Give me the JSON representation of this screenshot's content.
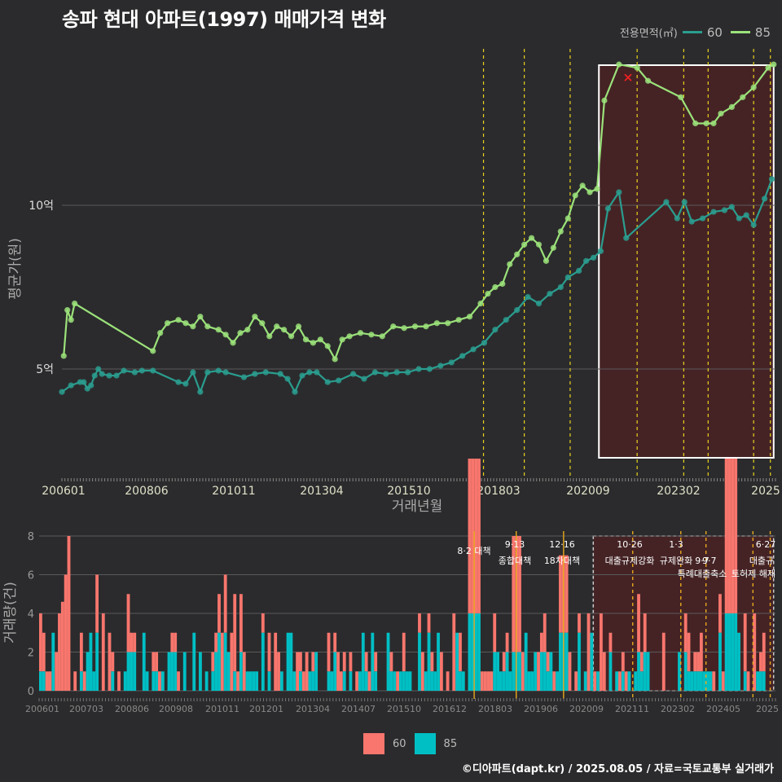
{
  "title": "송파 현대 아파트(1997) 매매가격 변화",
  "legend_top": {
    "title": "전용면적(㎡)",
    "items": [
      {
        "label": "60",
        "color": "#2a9d8f"
      },
      {
        "label": "85",
        "color": "#9be27a"
      }
    ]
  },
  "legend_bottom": {
    "items": [
      {
        "label": "60",
        "color": "#f8766d"
      },
      {
        "label": "85",
        "color": "#00bfc4"
      }
    ]
  },
  "credit": "©디아파트(dapt.kr) / 2025.08.05 / 자료=국토교통부 실거래가",
  "chart_data": [
    {
      "type": "line",
      "xlabel": "거래년월",
      "ylabel": "평균가(원)",
      "x_ticks": [
        "200601",
        "200806",
        "201011",
        "201304",
        "201510",
        "201803",
        "202009",
        "202302",
        "2025"
      ],
      "y_ticks": [
        {
          "label": "5억",
          "value": 5
        },
        {
          "label": "10억",
          "value": 10
        }
      ],
      "ylim": [
        3.3,
        14.3
      ],
      "xlim": [
        2006.0,
        2025.6
      ],
      "grid": true,
      "highlight_region": [
        2020.75,
        2025.6
      ],
      "vlines": [
        2017.58,
        2018.7,
        2019.96,
        2021.8,
        2023.08,
        2023.75,
        2025.0,
        2025.46
      ],
      "series": [
        {
          "name": "60",
          "color": "#2a9d8f",
          "points": [
            [
              2006.0,
              4.3
            ],
            [
              2006.25,
              4.5
            ],
            [
              2006.5,
              4.6
            ],
            [
              2006.6,
              4.6
            ],
            [
              2006.7,
              4.4
            ],
            [
              2006.8,
              4.5
            ],
            [
              2006.9,
              4.8
            ],
            [
              2007.0,
              5.0
            ],
            [
              2007.1,
              4.85
            ],
            [
              2007.3,
              4.8
            ],
            [
              2007.5,
              4.8
            ],
            [
              2007.7,
              4.95
            ],
            [
              2008.0,
              4.9
            ],
            [
              2008.2,
              4.95
            ],
            [
              2008.5,
              4.95
            ],
            [
              2009.2,
              4.6
            ],
            [
              2009.4,
              4.55
            ],
            [
              2009.6,
              4.9
            ],
            [
              2009.8,
              4.3
            ],
            [
              2010.0,
              4.9
            ],
            [
              2010.3,
              4.95
            ],
            [
              2010.5,
              4.9
            ],
            [
              2011.0,
              4.75
            ],
            [
              2011.3,
              4.85
            ],
            [
              2011.6,
              4.9
            ],
            [
              2012.0,
              4.85
            ],
            [
              2012.2,
              4.7
            ],
            [
              2012.4,
              4.3
            ],
            [
              2012.6,
              4.8
            ],
            [
              2012.8,
              4.9
            ],
            [
              2013.0,
              4.9
            ],
            [
              2013.3,
              4.6
            ],
            [
              2013.6,
              4.65
            ],
            [
              2014.0,
              4.85
            ],
            [
              2014.3,
              4.7
            ],
            [
              2014.6,
              4.9
            ],
            [
              2014.9,
              4.85
            ],
            [
              2015.2,
              4.9
            ],
            [
              2015.5,
              4.9
            ],
            [
              2015.8,
              5.0
            ],
            [
              2016.1,
              5.0
            ],
            [
              2016.4,
              5.1
            ],
            [
              2016.7,
              5.2
            ],
            [
              2017.0,
              5.4
            ],
            [
              2017.3,
              5.6
            ],
            [
              2017.6,
              5.8
            ],
            [
              2017.9,
              6.2
            ],
            [
              2018.2,
              6.5
            ],
            [
              2018.5,
              6.8
            ],
            [
              2018.8,
              7.2
            ],
            [
              2019.1,
              7.0
            ],
            [
              2019.4,
              7.3
            ],
            [
              2019.7,
              7.5
            ],
            [
              2019.9,
              7.8
            ],
            [
              2020.2,
              8.0
            ],
            [
              2020.4,
              8.3
            ],
            [
              2020.6,
              8.4
            ],
            [
              2020.8,
              8.6
            ],
            [
              2021.0,
              9.9
            ],
            [
              2021.3,
              10.4
            ],
            [
              2021.5,
              9.0
            ],
            [
              2022.6,
              10.1
            ],
            [
              2022.9,
              9.6
            ],
            [
              2023.1,
              10.1
            ],
            [
              2023.3,
              9.5
            ],
            [
              2023.6,
              9.6
            ],
            [
              2023.9,
              9.8
            ],
            [
              2024.2,
              9.85
            ],
            [
              2024.4,
              9.95
            ],
            [
              2024.6,
              9.6
            ],
            [
              2024.8,
              9.7
            ],
            [
              2025.0,
              9.4
            ],
            [
              2025.3,
              10.2
            ],
            [
              2025.5,
              10.8
            ]
          ]
        },
        {
          "name": "85",
          "color": "#9be27a",
          "points": [
            [
              2006.05,
              5.4
            ],
            [
              2006.15,
              6.8
            ],
            [
              2006.25,
              6.5
            ],
            [
              2006.35,
              7.0
            ],
            [
              2008.5,
              5.55
            ],
            [
              2008.7,
              6.1
            ],
            [
              2008.9,
              6.4
            ],
            [
              2009.2,
              6.5
            ],
            [
              2009.4,
              6.4
            ],
            [
              2009.6,
              6.3
            ],
            [
              2009.8,
              6.6
            ],
            [
              2010.0,
              6.3
            ],
            [
              2010.3,
              6.2
            ],
            [
              2010.5,
              6.05
            ],
            [
              2010.7,
              5.8
            ],
            [
              2010.9,
              6.1
            ],
            [
              2011.1,
              6.2
            ],
            [
              2011.3,
              6.6
            ],
            [
              2011.5,
              6.4
            ],
            [
              2011.7,
              6.0
            ],
            [
              2011.9,
              6.3
            ],
            [
              2012.1,
              6.2
            ],
            [
              2012.3,
              6.0
            ],
            [
              2012.5,
              6.3
            ],
            [
              2012.7,
              5.9
            ],
            [
              2012.9,
              5.8
            ],
            [
              2013.1,
              5.9
            ],
            [
              2013.3,
              5.7
            ],
            [
              2013.5,
              5.3
            ],
            [
              2013.7,
              5.9
            ],
            [
              2013.9,
              6.0
            ],
            [
              2014.2,
              6.1
            ],
            [
              2014.5,
              6.05
            ],
            [
              2014.8,
              6.0
            ],
            [
              2015.1,
              6.3
            ],
            [
              2015.4,
              6.25
            ],
            [
              2015.7,
              6.3
            ],
            [
              2016.0,
              6.3
            ],
            [
              2016.3,
              6.4
            ],
            [
              2016.6,
              6.4
            ],
            [
              2016.9,
              6.5
            ],
            [
              2017.2,
              6.6
            ],
            [
              2017.5,
              7.0
            ],
            [
              2017.7,
              7.3
            ],
            [
              2017.9,
              7.5
            ],
            [
              2018.1,
              7.6
            ],
            [
              2018.3,
              8.2
            ],
            [
              2018.5,
              8.5
            ],
            [
              2018.7,
              8.8
            ],
            [
              2018.9,
              9.0
            ],
            [
              2019.1,
              8.8
            ],
            [
              2019.3,
              8.3
            ],
            [
              2019.5,
              8.7
            ],
            [
              2019.7,
              9.2
            ],
            [
              2019.9,
              9.6
            ],
            [
              2020.1,
              10.3
            ],
            [
              2020.3,
              10.6
            ],
            [
              2020.5,
              10.4
            ],
            [
              2020.7,
              10.5
            ],
            [
              2020.9,
              13.2
            ],
            [
              2021.3,
              14.3
            ],
            [
              2021.8,
              14.2
            ],
            [
              2022.1,
              13.8
            ],
            [
              2023.0,
              13.3
            ],
            [
              2023.4,
              12.5
            ],
            [
              2023.7,
              12.5
            ],
            [
              2023.9,
              12.5
            ],
            [
              2024.1,
              12.8
            ],
            [
              2024.4,
              13.0
            ],
            [
              2024.7,
              13.3
            ],
            [
              2025.0,
              13.6
            ],
            [
              2025.4,
              14.2
            ],
            [
              2025.55,
              14.3
            ]
          ]
        }
      ]
    },
    {
      "type": "bar",
      "xlabel": "",
      "ylabel": "거래량(건)",
      "x_ticks": [
        "200601",
        "200703",
        "200806",
        "200908",
        "201011",
        "201201",
        "201304",
        "201407",
        "201510",
        "201612",
        "201803",
        "201906",
        "202009",
        "202111",
        "202302",
        "202405",
        "2025"
      ],
      "y_ticks": [
        0,
        2,
        4,
        6,
        8
      ],
      "ylim": [
        0,
        8.3
      ],
      "highlight_region": [
        2020.75,
        2025.6
      ],
      "annotations": [
        {
          "x": 2017.58,
          "label": "8·2 대책"
        },
        {
          "x": 2018.7,
          "label": "9·13 종합대책"
        },
        {
          "x": 2019.96,
          "label": "12·16 18차대책"
        },
        {
          "x": 2021.8,
          "label": "10·26 대출규제강화"
        },
        {
          "x": 2023.08,
          "label": "1·3 규제완화"
        },
        {
          "x": 2023.75,
          "label": "9·7 특례대출축소"
        },
        {
          "x": 2025.0,
          "label": "6·27 대출규제"
        },
        {
          "x": 2025.46,
          "label": "토허제 해제"
        }
      ],
      "series": [
        {
          "name": "60",
          "color": "#f8766d"
        },
        {
          "name": "85",
          "color": "#00bfc4"
        }
      ]
    }
  ]
}
